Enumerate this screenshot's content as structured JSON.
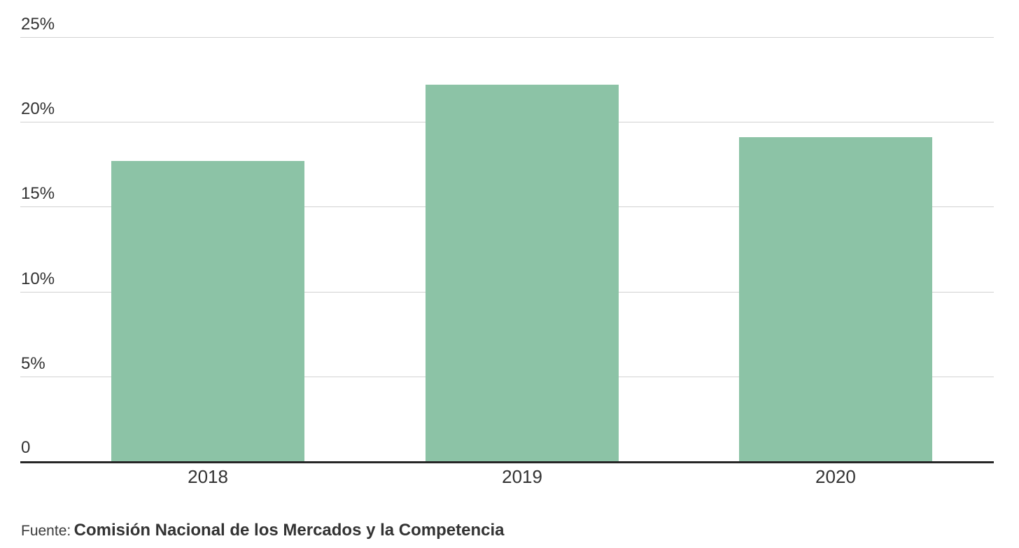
{
  "chart_data": {
    "type": "bar",
    "categories": [
      "2018",
      "2019",
      "2020"
    ],
    "values": [
      17.7,
      22.2,
      19.1
    ],
    "unit": "%",
    "title": "",
    "xlabel": "",
    "ylabel": "",
    "ylim": [
      0,
      25
    ],
    "y_ticks": [
      {
        "label": "25%",
        "value": 25
      },
      {
        "label": "20%",
        "value": 20
      },
      {
        "label": "15%",
        "value": 15
      },
      {
        "label": "10%",
        "value": 10
      },
      {
        "label": "5%",
        "value": 5
      },
      {
        "label": "0",
        "value": 0
      }
    ],
    "grid": true,
    "legend": false,
    "bar_color": "#8cc3a6"
  },
  "colors": {
    "bar": "#8cc3a6",
    "gridline": "#d2d2d2",
    "axis": "#262626",
    "text": "#333333",
    "background": "#ffffff"
  },
  "source": {
    "prefix": "Fuente:",
    "name": "Comisión Nacional de los Mercados y la Competencia"
  }
}
